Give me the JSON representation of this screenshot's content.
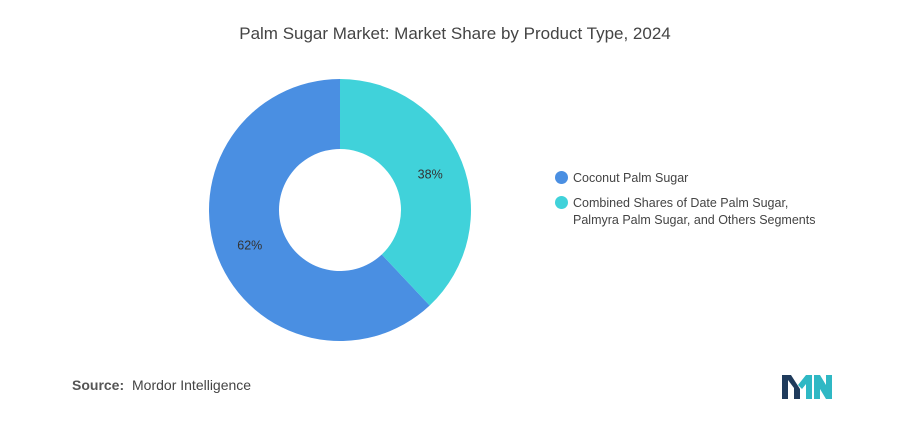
{
  "chart_data": {
    "type": "pie",
    "donut": true,
    "title": "Palm Sugar Market: Market Share by Product Type, 2024",
    "slices": [
      {
        "label": "Coconut Palm Sugar",
        "value": 62,
        "display": "62%",
        "color": "#4a8fe2"
      },
      {
        "label_lines": [
          "Combined Shares of Date Palm Sugar,",
          "Palmyra Palm Sugar, and Others Segments"
        ],
        "value": 38,
        "display": "38%",
        "color": "#40d2da"
      }
    ],
    "legend_position": "right"
  },
  "footer": {
    "source_label": "Source:",
    "source_value": "Mordor Intelligence"
  },
  "logo": {
    "icon": "mordor-intelligence-logo-icon",
    "colors": [
      "#1f3b5c",
      "#2fb8c4"
    ]
  }
}
